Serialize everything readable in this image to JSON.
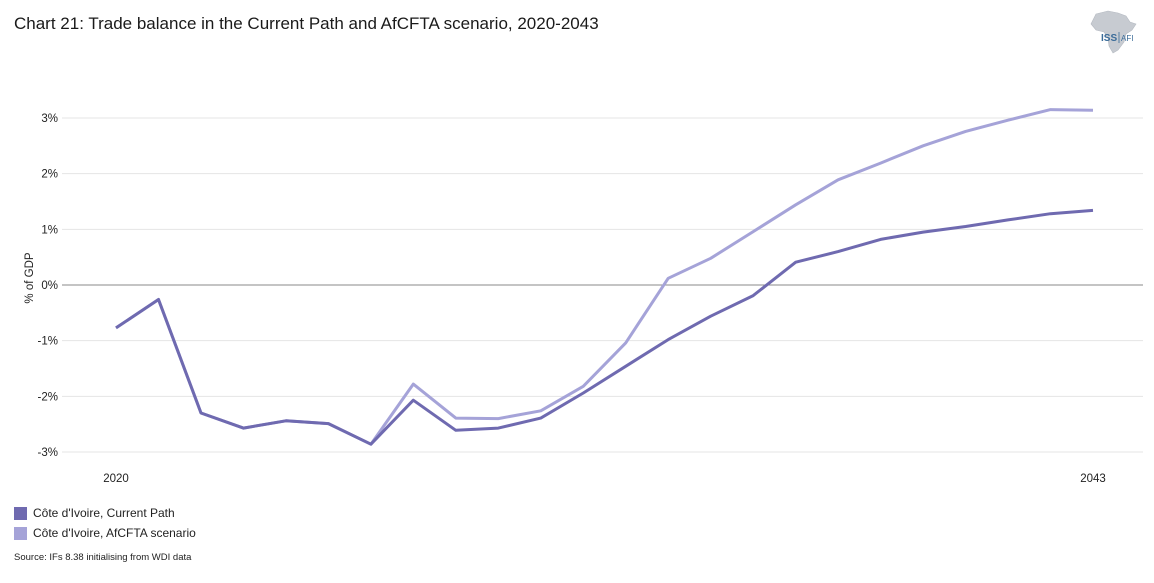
{
  "title": "Chart 21: Trade balance in the Current Path and AfCFTA scenario, 2020-2043",
  "logo": {
    "text_main": "ISS",
    "text_sub": "AFI",
    "icon": "africa-map-icon"
  },
  "colors": {
    "current_path": "#6f6ab0",
    "afcfta": "#a5a3d8",
    "grid": "#e4e4e4",
    "zero": "#888888"
  },
  "chart_data": {
    "type": "line",
    "title": "Chart 21: Trade balance in the Current Path and AfCFTA scenario, 2020-2043",
    "ylabel": "% of GDP",
    "xlabel": "",
    "x": [
      2020,
      2021,
      2022,
      2023,
      2024,
      2025,
      2026,
      2027,
      2028,
      2029,
      2030,
      2031,
      2032,
      2033,
      2034,
      2035,
      2036,
      2037,
      2038,
      2039,
      2040,
      2041,
      2042,
      2043
    ],
    "x_tick_labels": [
      "2020",
      "2043"
    ],
    "y_ticks": [
      -3,
      -2,
      -1,
      0,
      1,
      2,
      3
    ],
    "y_tick_labels": [
      "-3%",
      "-2%",
      "-1%",
      "0%",
      "1%",
      "2%",
      "3%"
    ],
    "ylim": [
      -3.1,
      3.3
    ],
    "grid": true,
    "legend_position": "bottom-left",
    "series": [
      {
        "name": "Côte d'Ivoire, Current Path",
        "color": "#6f6ab0",
        "values": [
          -0.77,
          -0.26,
          -2.3,
          -2.57,
          -2.44,
          -2.49,
          -2.86,
          -2.07,
          -2.61,
          -2.57,
          -2.39,
          -1.94,
          -1.46,
          -0.98,
          -0.56,
          -0.19,
          0.41,
          0.6,
          0.82,
          0.95,
          1.05,
          1.17,
          1.28,
          1.34
        ]
      },
      {
        "name": "Côte d'Ivoire, AfCFTA scenario",
        "color": "#a5a3d8",
        "values": [
          -0.77,
          -0.26,
          -2.3,
          -2.57,
          -2.44,
          -2.49,
          -2.86,
          -1.78,
          -2.39,
          -2.4,
          -2.26,
          -1.82,
          -1.04,
          0.12,
          0.48,
          0.96,
          1.44,
          1.89,
          2.19,
          2.5,
          2.76,
          2.96,
          3.15,
          3.14
        ]
      }
    ]
  },
  "source": "Source: IFs 8.38 initialising from WDI data"
}
